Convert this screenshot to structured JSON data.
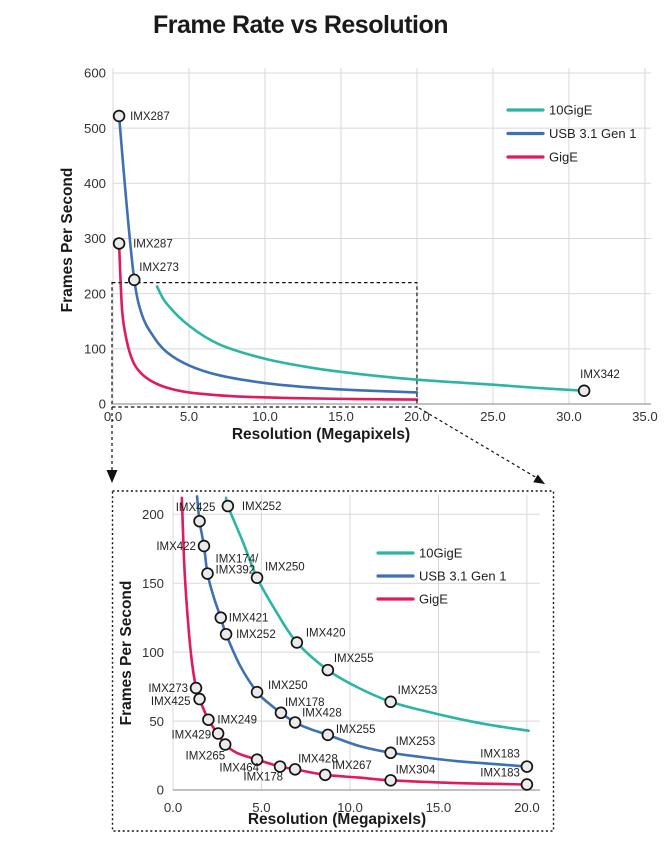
{
  "title": "Frame Rate vs Resolution",
  "colors": {
    "teal": "#2ab5a5",
    "blue": "#3e70b4",
    "pink": "#e01a5c",
    "grid": "#d8d8d8",
    "axis": "#9c9c9c",
    "marker_fill": "#ebebeb",
    "marker_stroke": "#141414",
    "label_text": "#1f1f1f",
    "tick_text": "#333333",
    "heading_text": "#1a1a1a",
    "dashed": "#111111"
  },
  "legend": {
    "items": [
      "10GigE",
      "USB 3.1 Gen 1",
      "GigE"
    ]
  },
  "chart_data": [
    {
      "id": "top",
      "type": "line",
      "xlabel": "Resolution (Megapixels)",
      "ylabel": "Frames Per Second",
      "xlim": [
        0,
        35.4
      ],
      "ylim": [
        0,
        609
      ],
      "grid": true,
      "legend_position": "upper right",
      "x_ticks": {
        "values": [
          0,
          5,
          10,
          15,
          20,
          25,
          30,
          35
        ],
        "labels": [
          "0.0",
          "5.0",
          "10.0",
          "15.0",
          "20.0",
          "25.0",
          "30.0",
          "35.0"
        ]
      },
      "y_ticks": {
        "values": [
          0,
          100,
          200,
          300,
          400,
          500,
          600
        ],
        "labels": [
          "0",
          "100",
          "200",
          "300",
          "400",
          "500",
          "600"
        ]
      },
      "zoom_region": {
        "x_range_mp": [
          0,
          20
        ],
        "y_max_fps": 220
      },
      "series": [
        {
          "name": "10GigE",
          "color": "#2ab5a5",
          "points": [
            [
              2.9,
              213
            ],
            [
              3.5,
              183
            ],
            [
              5,
              142
            ],
            [
              7,
              108
            ],
            [
              10,
              82
            ],
            [
              13,
              66
            ],
            [
              16,
              55
            ],
            [
              20,
              44
            ],
            [
              25,
              35
            ],
            [
              28,
              29
            ],
            [
              31,
              24
            ]
          ],
          "markers": [
            {
              "x": 31,
              "y": 24,
              "label": "IMX342",
              "dx": -4,
              "dy": -13,
              "anchor": "start"
            }
          ]
        },
        {
          "name": "USB 3.1 Gen 1",
          "color": "#3e70b4",
          "points": [
            [
              0.4,
              522
            ],
            [
              0.9,
              360
            ],
            [
              1.4,
              225
            ],
            [
              1.9,
              162
            ],
            [
              2.6,
              125
            ],
            [
              3.5,
              95
            ],
            [
              5,
              70
            ],
            [
              7,
              52
            ],
            [
              10,
              38
            ],
            [
              13,
              30
            ],
            [
              16,
              25
            ],
            [
              20,
              21
            ]
          ],
          "markers": [
            {
              "x": 0.4,
              "y": 522,
              "label": "IMX287",
              "dx": 11,
              "dy": 4,
              "anchor": "start"
            },
            {
              "x": 1.4,
              "y": 225,
              "label": "IMX273",
              "dx": 5,
              "dy": -9,
              "anchor": "start"
            }
          ]
        },
        {
          "name": "GigE",
          "color": "#e01a5c",
          "points": [
            [
              0.4,
              291
            ],
            [
              0.6,
              170
            ],
            [
              0.9,
              115
            ],
            [
              1.3,
              78
            ],
            [
              1.8,
              57
            ],
            [
              2.5,
              42
            ],
            [
              3.5,
              30
            ],
            [
              5,
              21
            ],
            [
              8,
              14
            ],
            [
              12,
              10.5
            ],
            [
              16,
              9
            ],
            [
              20,
              8
            ]
          ],
          "markers": [
            {
              "x": 0.4,
              "y": 291,
              "label": "IMX287",
              "dx": 14,
              "dy": 4,
              "anchor": "start"
            }
          ]
        }
      ]
    },
    {
      "id": "bottom",
      "type": "line",
      "xlabel": "Resolution (Megapixels)",
      "ylabel": "Frames Per Second",
      "xlim": [
        0,
        20.74
      ],
      "ylim": [
        0,
        214
      ],
      "grid": true,
      "legend_position": "upper right",
      "x_ticks": {
        "values": [
          0,
          5,
          10,
          15,
          20
        ],
        "labels": [
          "0.0",
          "5.0",
          "10.0",
          "15.0",
          "20.0"
        ]
      },
      "y_ticks": {
        "values": [
          0,
          50,
          100,
          150,
          200
        ],
        "labels": [
          "0",
          "50",
          "100",
          "150",
          "200"
        ]
      },
      "series": [
        {
          "name": "10GigE",
          "color": "#2ab5a5",
          "points": [
            [
              3.0,
              212
            ],
            [
              3.1,
              206
            ],
            [
              3.95,
              180
            ],
            [
              4.75,
              154
            ],
            [
              5.85,
              129
            ],
            [
              7.0,
              107
            ],
            [
              8.75,
              87
            ],
            [
              10.5,
              74
            ],
            [
              12.3,
              64
            ],
            [
              14,
              58
            ],
            [
              16,
              52
            ],
            [
              18,
              47
            ],
            [
              20.1,
              43
            ]
          ],
          "markers": [
            {
              "x": 3.1,
              "y": 206,
              "label": "IMX252",
              "dx": 14,
              "dy": 4,
              "anchor": "start"
            },
            {
              "x": 4.75,
              "y": 154,
              "label": "IMX250",
              "dx": 8,
              "dy": -7,
              "anchor": "start"
            },
            {
              "x": 7.0,
              "y": 107,
              "label": "IMX420",
              "dx": 9,
              "dy": -6,
              "anchor": "start"
            },
            {
              "x": 8.75,
              "y": 87,
              "label": "IMX255",
              "dx": 6,
              "dy": -8,
              "anchor": "start"
            },
            {
              "x": 12.3,
              "y": 64,
              "label": "IMX253",
              "dx": 7,
              "dy": -8,
              "anchor": "start"
            }
          ]
        },
        {
          "name": "USB 3.1 Gen 1",
          "color": "#3e70b4",
          "points": [
            [
              1.36,
              213
            ],
            [
              1.5,
              195
            ],
            [
              1.75,
              177
            ],
            [
              1.95,
              157
            ],
            [
              2.3,
              140
            ],
            [
              2.7,
              125
            ],
            [
              3.0,
              113
            ],
            [
              3.8,
              90
            ],
            [
              4.75,
              71
            ],
            [
              5.4,
              63
            ],
            [
              6.1,
              56
            ],
            [
              6.9,
              49
            ],
            [
              7.8,
              44
            ],
            [
              8.75,
              40
            ],
            [
              10.5,
              32
            ],
            [
              12.3,
              27
            ],
            [
              14,
              24
            ],
            [
              16,
              21
            ],
            [
              18,
              19
            ],
            [
              20,
              17
            ]
          ],
          "markers": [
            {
              "x": 1.5,
              "y": 195,
              "label": "IMX425",
              "dx": -4,
              "dy": -10,
              "anchor": "middle"
            },
            {
              "x": 1.75,
              "y": 177,
              "label": "IMX422",
              "dx": -8,
              "dy": 4,
              "anchor": "end"
            },
            {
              "x": 1.95,
              "y": 157,
              "label": "IMX174/\nIMX392",
              "dx": 8,
              "dy": -11,
              "anchor": "start"
            },
            {
              "x": 2.7,
              "y": 125,
              "label": "IMX421",
              "dx": 8,
              "dy": 4,
              "anchor": "start"
            },
            {
              "x": 3.0,
              "y": 113,
              "label": "IMX252",
              "dx": 10,
              "dy": 4,
              "anchor": "start"
            },
            {
              "x": 4.75,
              "y": 71,
              "label": "IMX250",
              "dx": 11,
              "dy": -3,
              "anchor": "start"
            },
            {
              "x": 6.1,
              "y": 56,
              "label": "IMX178",
              "dx": 4,
              "dy": -7,
              "anchor": "start"
            },
            {
              "x": 6.9,
              "y": 49,
              "label": "IMX428",
              "dx": 7,
              "dy": -6,
              "anchor": "start"
            },
            {
              "x": 8.75,
              "y": 40,
              "label": "IMX255",
              "dx": 8,
              "dy": -2,
              "anchor": "start"
            },
            {
              "x": 12.3,
              "y": 27,
              "label": "IMX253",
              "dx": 5,
              "dy": -8,
              "anchor": "start"
            },
            {
              "x": 20,
              "y": 17,
              "label": "IMX183",
              "dx": -7,
              "dy": -9,
              "anchor": "end"
            }
          ]
        },
        {
          "name": "GigE",
          "color": "#e01a5c",
          "points": [
            [
              0.5,
              212
            ],
            [
              0.65,
              160
            ],
            [
              0.85,
              122
            ],
            [
              1.05,
              95
            ],
            [
              1.3,
              74
            ],
            [
              1.5,
              66
            ],
            [
              1.75,
              58
            ],
            [
              2.0,
              51
            ],
            [
              2.3,
              45
            ],
            [
              2.55,
              41
            ],
            [
              2.95,
              33
            ],
            [
              3.6,
              27
            ],
            [
              4.75,
              22
            ],
            [
              6.05,
              17
            ],
            [
              6.9,
              15
            ],
            [
              8.6,
              11
            ],
            [
              10.5,
              9
            ],
            [
              12.3,
              7
            ],
            [
              16,
              5
            ],
            [
              20,
              4
            ]
          ],
          "markers": [
            {
              "x": 1.3,
              "y": 74,
              "label": "IMX273",
              "dx": -8,
              "dy": 4,
              "anchor": "end"
            },
            {
              "x": 1.5,
              "y": 66,
              "label": "IMX425",
              "dx": -9,
              "dy": 6,
              "anchor": "end"
            },
            {
              "x": 2.0,
              "y": 51,
              "label": "IMX249",
              "dx": 9,
              "dy": 4,
              "anchor": "start"
            },
            {
              "x": 2.55,
              "y": 41,
              "label": "IMX429",
              "dx": -7,
              "dy": 5,
              "anchor": "end"
            },
            {
              "x": 2.95,
              "y": 33,
              "label": "IMX265",
              "dx": 0,
              "dy": 15,
              "anchor": "end"
            },
            {
              "x": 4.75,
              "y": 22,
              "label": "IMX464",
              "dx": 2,
              "dy": 12,
              "anchor": "end"
            },
            {
              "x": 6.05,
              "y": 17,
              "label": "IMX178",
              "dx": 3,
              "dy": 14,
              "anchor": "end"
            },
            {
              "x": 6.9,
              "y": 15,
              "label": "IMX428",
              "dx": 3,
              "dy": -7,
              "anchor": "start"
            },
            {
              "x": 8.6,
              "y": 11,
              "label": "IMX267",
              "dx": 7,
              "dy": -6,
              "anchor": "start"
            },
            {
              "x": 12.3,
              "y": 7,
              "label": "IMX304",
              "dx": 5,
              "dy": -7,
              "anchor": "start"
            },
            {
              "x": 20,
              "y": 4,
              "label": "IMX183",
              "dx": -7,
              "dy": -8,
              "anchor": "end"
            }
          ]
        }
      ]
    }
  ]
}
